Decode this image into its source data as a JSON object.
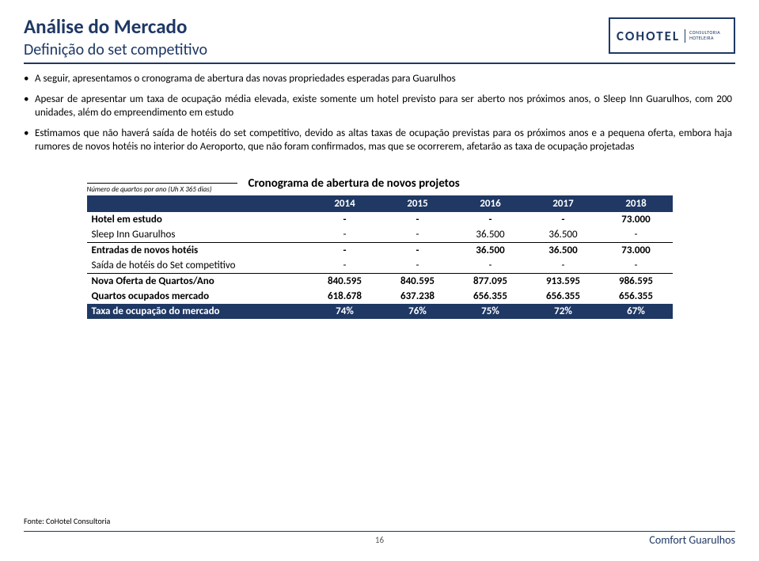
{
  "colors": {
    "brand": "#1f3864",
    "text": "#000000",
    "bg": "#ffffff",
    "pagenum": "#595959"
  },
  "logo": {
    "main": "COHOTEL",
    "sub": "CONSULTORIA HOTELEIRA"
  },
  "header": {
    "title": "Análise do Mercado",
    "subtitle": "Definição do set competitivo"
  },
  "bullets": [
    "A seguir, apresentamos o cronograma de abertura das novas propriedades esperadas para Guarulhos",
    "Apesar de apresentar um taxa de ocupação média elevada, existe somente um hotel previsto para ser aberto nos próximos anos, o Sleep Inn Guarulhos, com 200 unidades, além do empreendimento em estudo",
    "Estimamos que não haverá saída de hotéis do set competitivo, devido as altas taxas de ocupação previstas para os próximos anos e a pequena oferta, embora haja rumores de novos hotéis no interior do Aeroporto, que não foram confirmados, mas que se ocorrerem, afetarão as taxa de ocupação projetadas"
  ],
  "table": {
    "note": "Número de quartos por ano (Uh X 365 dias)",
    "title": "Cronograma de abertura de novos projetos",
    "columns": [
      "",
      "2014",
      "2015",
      "2016",
      "2017",
      "2018"
    ],
    "rows": [
      {
        "label": "Hotel em estudo",
        "vals": [
          "-",
          "-",
          "-",
          "-",
          "73.000"
        ],
        "bold": true
      },
      {
        "label": "Sleep Inn Guarulhos",
        "vals": [
          "-",
          "-",
          "36.500",
          "36.500",
          "-"
        ],
        "bold": false
      },
      {
        "label": "Entradas de novos hotéis",
        "vals": [
          "-",
          "-",
          "36.500",
          "36.500",
          "73.000"
        ],
        "bold": true,
        "borderTop": true
      },
      {
        "label": "Saída de hotéis do Set competitivo",
        "vals": [
          "-",
          "-",
          "-",
          "-",
          "-"
        ],
        "bold": false
      },
      {
        "label": "Nova Oferta  de Quartos/Ano",
        "vals": [
          "840.595",
          "840.595",
          "877.095",
          "913.595",
          "986.595"
        ],
        "bold": true,
        "borderTop": true
      },
      {
        "label": "Quartos ocupados mercado",
        "vals": [
          "618.678",
          "637.238",
          "656.355",
          "656.355",
          "656.355"
        ],
        "bold": true
      },
      {
        "label": "Taxa de ocupação do mercado",
        "vals": [
          "74%",
          "76%",
          "75%",
          "72%",
          "67%"
        ],
        "dark": true
      }
    ]
  },
  "footer": {
    "source": "Fonte: CoHotel Consultoria",
    "page": "16",
    "brand": "Comfort Guarulhos"
  }
}
